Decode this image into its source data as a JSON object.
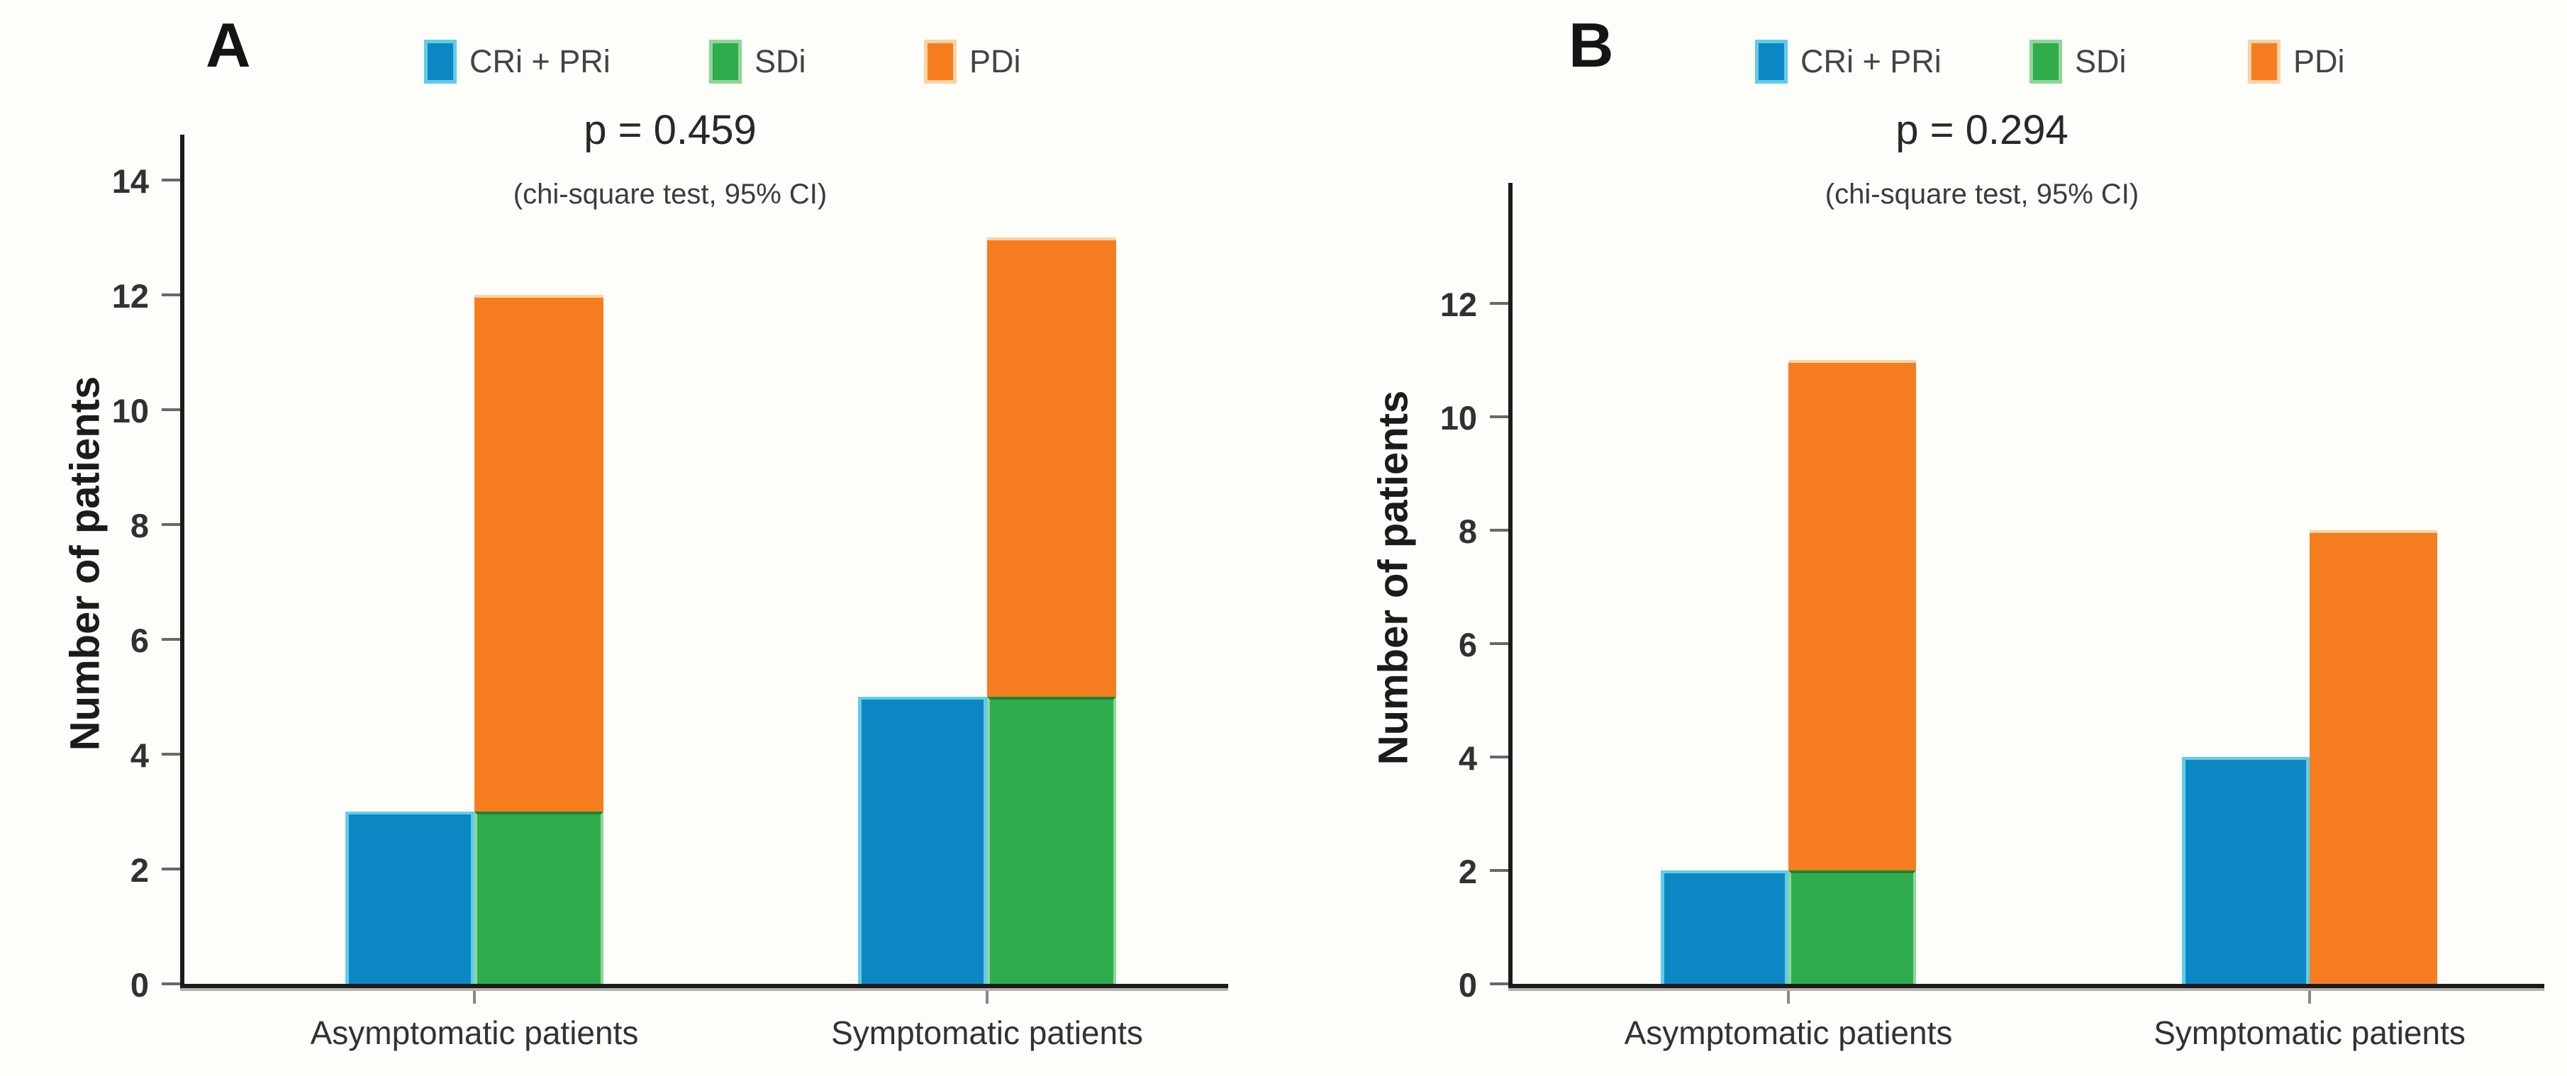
{
  "figure": {
    "background": "#fdfdfa",
    "ylabel": "Number of patients",
    "colors": {
      "cr_pr": "#0c87c3",
      "cr_pr_edge": "#63cbe9",
      "sd": "#2fad4d",
      "sd_edge": "#8fd698",
      "sd_top_separator": "#19843b",
      "pd": "#f57d20",
      "pd_edge": "#fbd3a4",
      "axis": "#1b1b1b",
      "axis_shadow": "#b3b1ae",
      "text": "#242021"
    },
    "legend": {
      "items": [
        {
          "key": "cr_pr",
          "label": "CRi + PRi"
        },
        {
          "key": "sd",
          "label": "SDi"
        },
        {
          "key": "pd",
          "label": "PDi"
        }
      ]
    }
  },
  "chart_data": [
    {
      "type": "bar",
      "panel_label": "A",
      "title": "p = 0.459",
      "subtitle": "(chi-square test, 95% CI)",
      "ylabel": "Number of patients",
      "legend": [
        "CRi + PRi",
        "SDi",
        "PDi"
      ],
      "legend_position": "top",
      "grid": false,
      "categories": [
        "Asymptomatic patients",
        "Symptomatic patients"
      ],
      "yticks": [
        0,
        2,
        4,
        6,
        8,
        10,
        12,
        14
      ],
      "ylim": [
        0,
        14.8
      ],
      "groups": [
        {
          "category": "Asymptomatic patients",
          "cr_pr": 3,
          "sd": 3,
          "pd_top": 12,
          "pd_segment": [
            3,
            12
          ]
        },
        {
          "category": "Symptomatic patients",
          "cr_pr": 5,
          "sd": 5,
          "pd_top": 13,
          "pd_segment": [
            5,
            13
          ]
        }
      ],
      "note": "CRi+PRi bar stands alone at left; PDi segment is drawn stacked directly on top of the SDi bar"
    },
    {
      "type": "bar",
      "panel_label": "B",
      "title": "p = 0.294",
      "subtitle": "(chi-square test, 95% CI)",
      "ylabel": "Number of patients",
      "legend": [
        "CRi + PRi",
        "SDi",
        "PDi"
      ],
      "legend_position": "top",
      "grid": false,
      "categories": [
        "Asymptomatic patients",
        "Symptomatic patients"
      ],
      "yticks": [
        0,
        2,
        4,
        6,
        8,
        10,
        12
      ],
      "ylim": [
        0,
        14.1
      ],
      "groups": [
        {
          "category": "Asymptomatic patients",
          "cr_pr": 2,
          "sd": 2,
          "pd_top": 11,
          "pd_segment": [
            2,
            11
          ]
        },
        {
          "category": "Symptomatic patients",
          "cr_pr": 4,
          "sd": 0,
          "pd_top": 8,
          "pd_segment": [
            0,
            8
          ]
        }
      ],
      "note": "CRi+PRi bar stands alone at left; PDi segment is drawn stacked directly on top of the SDi bar"
    }
  ]
}
